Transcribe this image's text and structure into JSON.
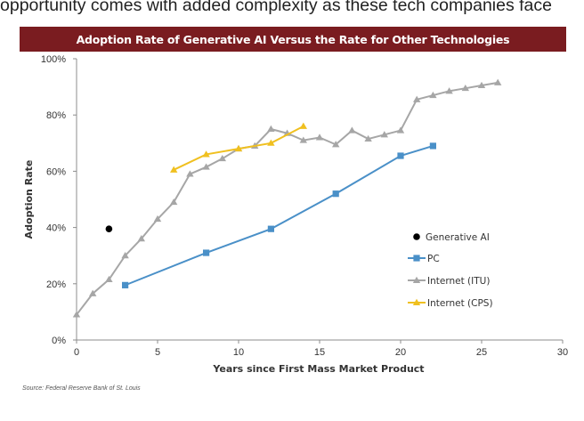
{
  "page": {
    "top_text": "opportunity comes with added complexity as these tech companies face",
    "source": "Source: Federal Reserve Bank of St. Louis"
  },
  "colors": {
    "banner": "#7a1c20",
    "generative_ai": "#000000",
    "pc": "#4a90c8",
    "internet_itu": "#a6a6a6",
    "internet_cps": "#f0c020"
  },
  "chart_data": {
    "type": "line",
    "title": "Adoption Rate of Generative AI Versus the Rate for Other Technologies",
    "xlabel": "Years since First Mass Market Product",
    "ylabel": "Adoption Rate",
    "xlim": [
      0,
      30
    ],
    "ylim": [
      0,
      100
    ],
    "x_ticks": [
      0,
      5,
      10,
      15,
      20,
      25,
      30
    ],
    "y_ticks": [
      0,
      20,
      40,
      60,
      80,
      100
    ],
    "y_tick_labels": [
      "0%",
      "20%",
      "40%",
      "60%",
      "80%",
      "100%"
    ],
    "grid": false,
    "legend_position": "right",
    "series": [
      {
        "name": "Generative AI",
        "marker": "circle",
        "points": [
          [
            2,
            39.5
          ]
        ]
      },
      {
        "name": "PC",
        "marker": "square",
        "points": [
          [
            3,
            19.5
          ],
          [
            8,
            31
          ],
          [
            12,
            39.5
          ],
          [
            16,
            52
          ],
          [
            20,
            65.5
          ],
          [
            22,
            69
          ]
        ]
      },
      {
        "name": "Internet (ITU)",
        "marker": "triangle",
        "points": [
          [
            0,
            9
          ],
          [
            1,
            16.5
          ],
          [
            2,
            21.5
          ],
          [
            3,
            30
          ],
          [
            4,
            36
          ],
          [
            5,
            43
          ],
          [
            6,
            49
          ],
          [
            7,
            59
          ],
          [
            8,
            61.5
          ],
          [
            9,
            64.5
          ],
          [
            10,
            68
          ],
          [
            11,
            69
          ],
          [
            12,
            75
          ],
          [
            13,
            73.5
          ],
          [
            14,
            71
          ],
          [
            15,
            72
          ],
          [
            16,
            69.5
          ],
          [
            17,
            74.5
          ],
          [
            18,
            71.5
          ],
          [
            19,
            73
          ],
          [
            20,
            74.5
          ],
          [
            21,
            85.5
          ],
          [
            22,
            87
          ],
          [
            23,
            88.5
          ],
          [
            24,
            89.5
          ],
          [
            25,
            90.5
          ],
          [
            26,
            91.5
          ]
        ]
      },
      {
        "name": "Internet (CPS)",
        "marker": "triangle",
        "points": [
          [
            6,
            60.5
          ],
          [
            8,
            66
          ],
          [
            10,
            68
          ],
          [
            12,
            70
          ],
          [
            14,
            76
          ]
        ]
      }
    ]
  }
}
